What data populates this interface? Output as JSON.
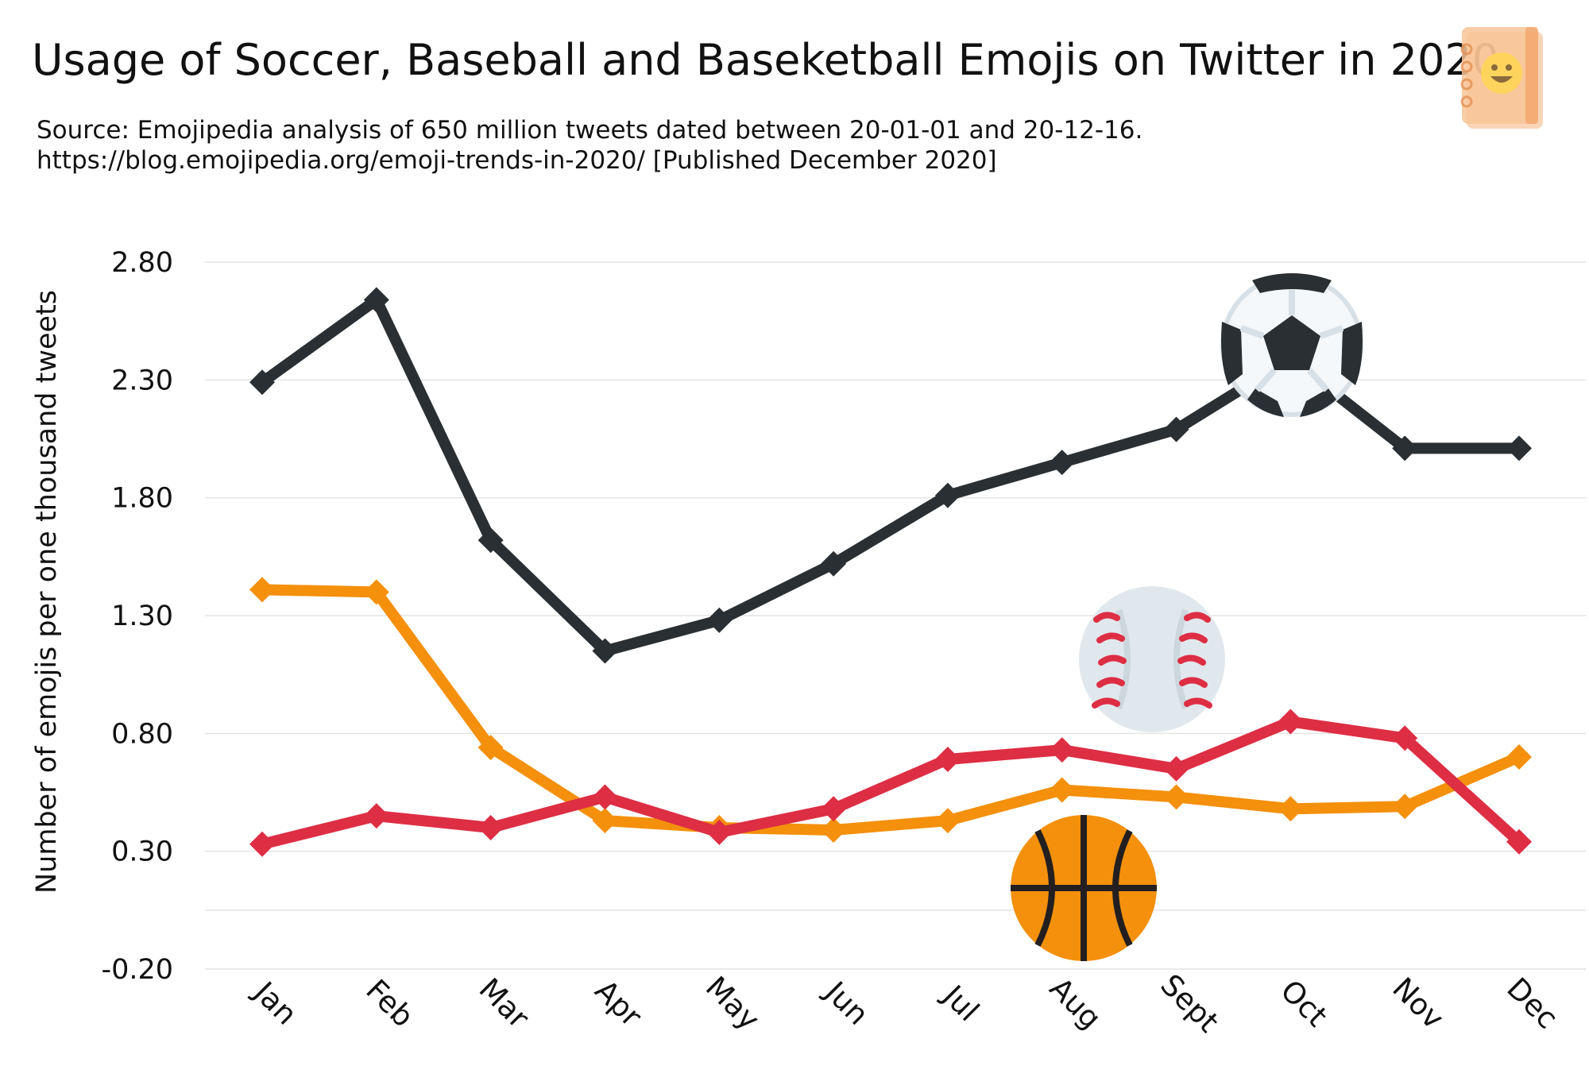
{
  "title": "Usage of Soccer, Baseball and Baseketball Emojis on Twitter in 2020",
  "source_line_1": "Source: Emojipedia analysis of 650 million tweets dated between 20-01-01 and 20-12-16.",
  "source_line_2": "https://blog.emojipedia.org/emoji-trends-in-2020/ [Published December 2020]",
  "logo_icon": "emojipedia-book-icon",
  "chart_data": {
    "type": "line",
    "title": "Usage of Soccer, Baseball and Baseketball Emojis on Twitter in 2020",
    "xlabel": "",
    "ylabel": "Number of emojis per one thousand tweets",
    "categories": [
      "Jan",
      "Feb",
      "Mar",
      "Apr",
      "May",
      "Jun",
      "Jul",
      "Aug",
      "Sept",
      "Oct",
      "Nov",
      "Dec"
    ],
    "yticks": [
      "2.80",
      "2.30",
      "1.80",
      "1.30",
      "0.80",
      "0.30",
      "-0.20"
    ],
    "ylim": [
      -0.2,
      2.8
    ],
    "grid": true,
    "legend": "none (series identified by emoji icons)",
    "series": [
      {
        "color": "#292f33",
        "icon": "soccer-ball-icon",
        "values": [
          2.29,
          2.64,
          1.62,
          1.15,
          1.28,
          1.52,
          1.81,
          1.95,
          2.09,
          2.39,
          2.01,
          2.01
        ]
      },
      {
        "color": "#f4900c",
        "icon": "basketball-icon",
        "values": [
          1.41,
          1.4,
          0.74,
          0.43,
          0.4,
          0.39,
          0.43,
          0.56,
          0.53,
          0.48,
          0.49,
          0.7
        ]
      },
      {
        "color": "#dd2e44",
        "icon": "baseball-icon",
        "values": [
          0.33,
          0.45,
          0.4,
          0.53,
          0.38,
          0.48,
          0.69,
          0.73,
          0.65,
          0.85,
          0.78,
          0.34
        ]
      }
    ]
  }
}
